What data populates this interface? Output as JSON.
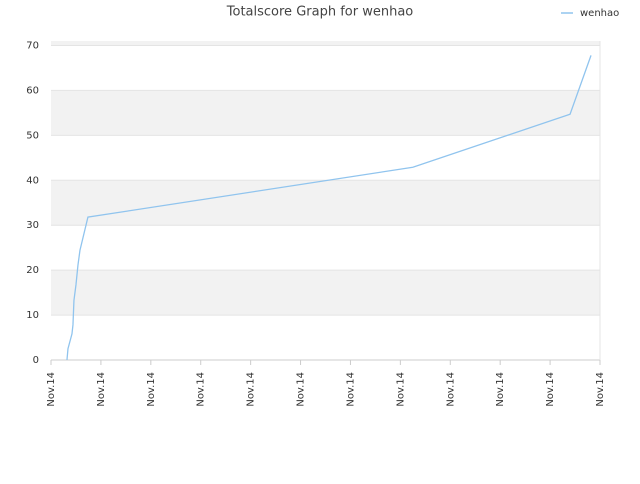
{
  "chart_data": {
    "type": "line",
    "title": "Totalscore Graph for wenhao",
    "x": [
      0.32,
      0.34,
      0.42,
      0.44,
      0.46,
      0.5,
      0.54,
      0.58,
      0.74,
      7.25,
      10.4,
      10.82
    ],
    "series": [
      {
        "name": "wenhao",
        "color": "#90c4ee",
        "values": [
          0,
          2.5,
          5.8,
          7.8,
          13.3,
          16.7,
          21.1,
          24.4,
          31.8,
          42.9,
          54.7,
          67.8
        ]
      }
    ],
    "xlim": [
      0,
      11
    ],
    "xticks": [
      {
        "value": 0,
        "label": "Nov.14"
      },
      {
        "value": 1,
        "label": "Nov.14"
      },
      {
        "value": 2,
        "label": "Nov.14"
      },
      {
        "value": 3,
        "label": "Nov.14"
      },
      {
        "value": 4,
        "label": "Nov.14"
      },
      {
        "value": 5,
        "label": "Nov.14"
      },
      {
        "value": 6,
        "label": "Nov.14"
      },
      {
        "value": 7,
        "label": "Nov.14"
      },
      {
        "value": 8,
        "label": "Nov.14"
      },
      {
        "value": 9,
        "label": "Nov.14"
      },
      {
        "value": 10,
        "label": "Nov.14"
      },
      {
        "value": 11,
        "label": "Nov.14"
      }
    ],
    "ylim": [
      0,
      71
    ],
    "yticks": [
      0,
      10,
      20,
      30,
      40,
      50,
      60,
      70
    ],
    "grid": true,
    "legend": "top-right"
  }
}
